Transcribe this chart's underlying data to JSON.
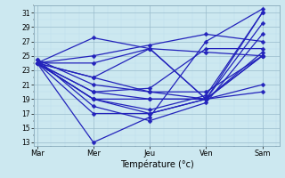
{
  "title": "",
  "xlabel": "Température (°c)",
  "ylabel": "",
  "background_color": "#cce8f0",
  "line_color": "#2222bb",
  "marker": "D",
  "markersize": 2.5,
  "linewidth": 0.9,
  "xlim": [
    -0.05,
    4.3
  ],
  "ylim": [
    12.5,
    32.0
  ],
  "yticks": [
    13,
    15,
    17,
    19,
    21,
    23,
    25,
    27,
    29,
    31
  ],
  "xtick_labels": [
    "Mar",
    "Mer",
    "Jeu",
    "Ven",
    "Sam"
  ],
  "xtick_positions": [
    0,
    1,
    2,
    3,
    4
  ],
  "grid_color": "#99bbcc",
  "minor_grid_color": "#bbddee",
  "series": [
    [
      24.0,
      19.0,
      17.0,
      19.0,
      31.0
    ],
    [
      24.0,
      17.0,
      17.0,
      19.0,
      29.5
    ],
    [
      24.5,
      21.0,
      20.0,
      20.0,
      25.0
    ],
    [
      24.0,
      20.0,
      20.5,
      26.0,
      26.0
    ],
    [
      24.0,
      22.0,
      20.0,
      19.0,
      25.0
    ],
    [
      24.0,
      19.0,
      17.5,
      19.5,
      31.0
    ],
    [
      24.0,
      20.0,
      19.0,
      19.0,
      25.0
    ],
    [
      24.0,
      22.0,
      26.0,
      19.0,
      25.5
    ],
    [
      24.5,
      18.0,
      16.0,
      18.5,
      28.0
    ],
    [
      24.0,
      13.0,
      16.5,
      27.0,
      31.5
    ],
    [
      24.0,
      27.5,
      26.0,
      25.5,
      25.0
    ],
    [
      24.0,
      25.0,
      26.5,
      28.0,
      27.0
    ],
    [
      24.0,
      19.0,
      19.0,
      19.0,
      21.0
    ],
    [
      24.0,
      24.0,
      26.0,
      19.0,
      20.0
    ]
  ]
}
